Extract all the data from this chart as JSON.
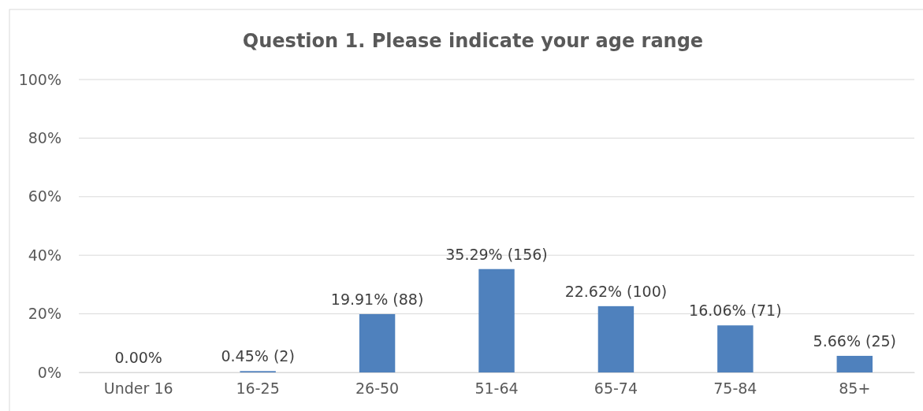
{
  "chart_data": {
    "type": "bar",
    "title": "Question 1. Please indicate your age range",
    "categories": [
      "Under 16",
      "16-25",
      "26-50",
      "51-64",
      "65-74",
      "75-84",
      "85+"
    ],
    "values": [
      0,
      0.45,
      19.91,
      35.29,
      22.62,
      16.06,
      5.66
    ],
    "value_labels": [
      "0.00%",
      "0.45% (2)",
      "19.91% (88)",
      "35.29% (156)",
      "22.62% (100)",
      "16.06% (71)",
      "5.66% (25)"
    ],
    "color": "#4f81bd",
    "ylim": [
      0,
      100
    ],
    "yticks": [
      {
        "value": 0,
        "label": "0%"
      },
      {
        "value": 20,
        "label": "20%"
      },
      {
        "value": 40,
        "label": "40%"
      },
      {
        "value": 60,
        "label": "60%"
      },
      {
        "value": 80,
        "label": "80%"
      },
      {
        "value": 100,
        "label": "100%"
      }
    ],
    "grid": "y"
  }
}
